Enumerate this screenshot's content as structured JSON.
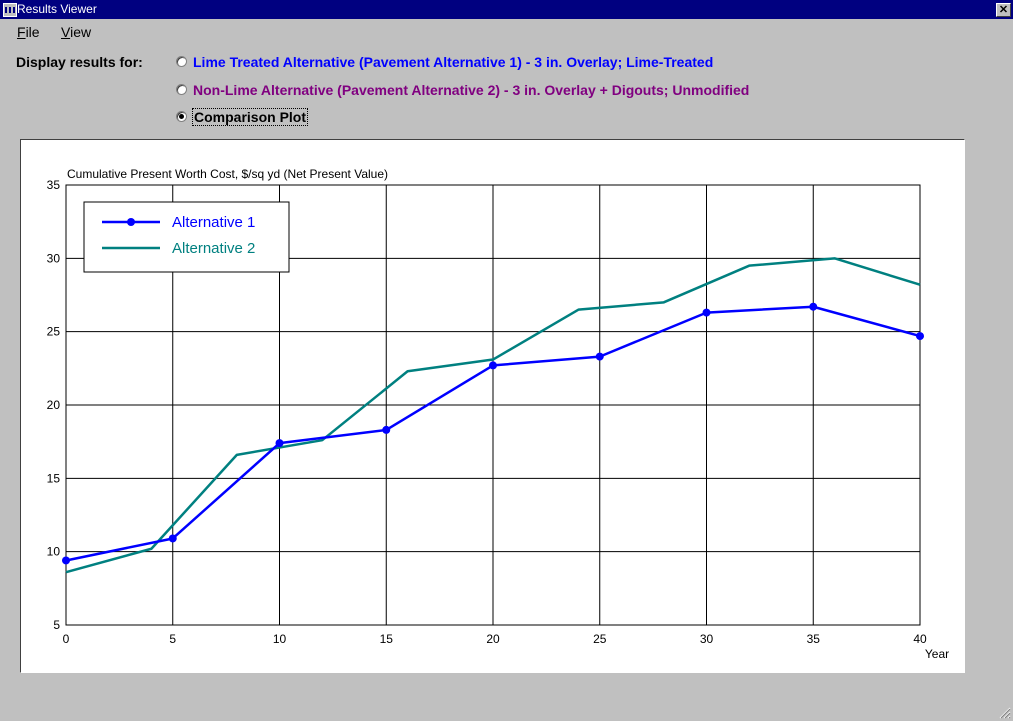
{
  "window": {
    "title": "Results Viewer",
    "close_glyph": "✕"
  },
  "menu": {
    "items": [
      {
        "label": "File",
        "accel": "F",
        "rest": "ile"
      },
      {
        "label": "View",
        "accel": "V",
        "rest": "iew"
      }
    ]
  },
  "display": {
    "label": "Display results for:",
    "options": [
      {
        "label": "Lime Treated Alternative (Pavement Alternative 1) - 3 in. Overlay; Lime-Treated",
        "color": "#0000ff",
        "selected": false
      },
      {
        "label": "Non-Lime Alternative (Pavement Alternative 2) - 3 in. Overlay + Digouts; Unmodified",
        "color": "#800080",
        "selected": false
      },
      {
        "label": "Comparison Plot",
        "color": "#000000",
        "selected": true
      }
    ]
  },
  "chart_data": {
    "type": "line",
    "title": "Cumulative Present Worth Cost, $/sq yd (Net Present Value)",
    "xlabel": "Year",
    "ylabel": "",
    "xlim": [
      0,
      40
    ],
    "ylim": [
      5,
      35
    ],
    "xticks": [
      0,
      5,
      10,
      15,
      20,
      25,
      30,
      35,
      40
    ],
    "yticks": [
      5,
      10,
      15,
      20,
      25,
      30,
      35
    ],
    "grid": true,
    "legend_position": "top-left",
    "series": [
      {
        "name": "Alternative 1",
        "color": "#0000ff",
        "markers": true,
        "points": [
          [
            0,
            9.4
          ],
          [
            5,
            10.9
          ],
          [
            10,
            17.4
          ],
          [
            15,
            18.3
          ],
          [
            20,
            22.7
          ],
          [
            25,
            23.3
          ],
          [
            30,
            26.3
          ],
          [
            35,
            26.7
          ],
          [
            40,
            24.7
          ]
        ]
      },
      {
        "name": "Alternative 2",
        "color": "#008080",
        "markers": false,
        "points": [
          [
            0,
            8.6
          ],
          [
            4,
            10.2
          ],
          [
            8,
            16.6
          ],
          [
            12,
            17.6
          ],
          [
            16,
            22.3
          ],
          [
            20,
            23.1
          ],
          [
            24,
            26.5
          ],
          [
            28,
            27.0
          ],
          [
            32,
            29.5
          ],
          [
            36,
            30.0
          ],
          [
            40,
            28.2
          ]
        ]
      }
    ]
  }
}
